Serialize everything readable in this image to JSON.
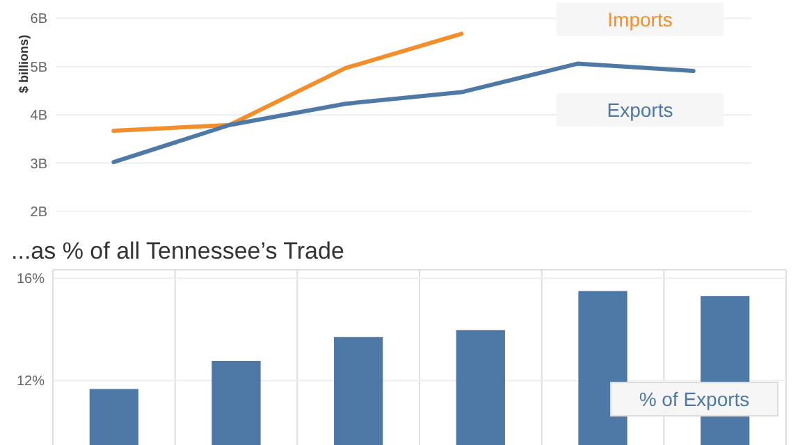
{
  "chart_data": [
    {
      "type": "line",
      "ylabel": "$ billions)",
      "categories": [
        null,
        null,
        null,
        null,
        null,
        null
      ],
      "series": [
        {
          "name": "Imports",
          "color": "#f28e2b",
          "values": [
            3.67,
            3.79,
            4.97,
            5.68,
            null,
            null
          ]
        },
        {
          "name": "Exports",
          "color": "#4e79a7",
          "values": [
            3.02,
            3.79,
            4.23,
            4.47,
            5.06,
            4.91
          ]
        }
      ],
      "ylim": [
        2,
        6.38
      ],
      "yticks": [
        {
          "value": 2,
          "label": "2B"
        },
        {
          "value": 3,
          "label": "3B"
        },
        {
          "value": 4,
          "label": "4B"
        },
        {
          "value": 5,
          "label": "5B"
        },
        {
          "value": 6,
          "label": "6B"
        }
      ],
      "grid": "y",
      "legend": "right",
      "marker": "none",
      "line_style": "solid"
    },
    {
      "type": "bar",
      "title": "...as % of all Tennessee’s Trade",
      "categories": [
        null,
        null,
        null,
        null,
        null,
        null
      ],
      "series": [
        {
          "name": "% of Exports",
          "color": "#4e79a7",
          "values": [
            11.67,
            12.77,
            13.7,
            13.97,
            15.5,
            15.3
          ]
        }
      ],
      "ylim": [
        9.48,
        16.33
      ],
      "yticks": [
        {
          "value": 12,
          "label": "12%"
        },
        {
          "value": 16,
          "label": "16%"
        }
      ],
      "grid": true,
      "legend": "bottom right"
    }
  ]
}
